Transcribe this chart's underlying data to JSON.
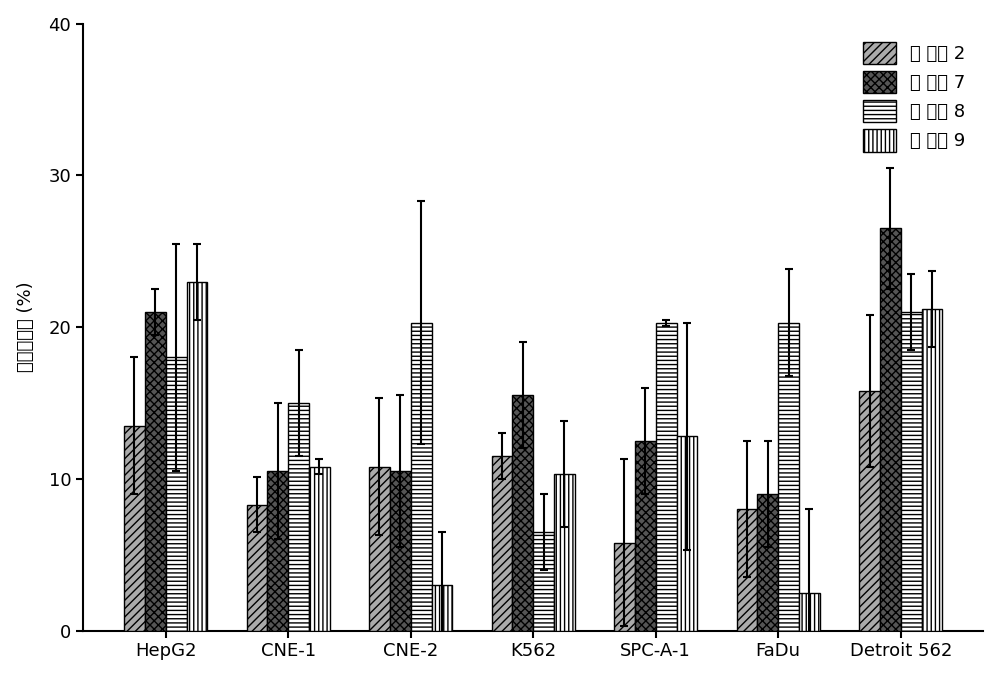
{
  "categories": [
    "HepG2",
    "CNE-1",
    "CNE-2",
    "K562",
    "SPC-A-1",
    "FaDu",
    "Detroit 562"
  ],
  "series": [
    {
      "label_prefix": "化 合物 ",
      "label_num": "2",
      "values": [
        13.5,
        8.3,
        10.8,
        11.5,
        5.8,
        8.0,
        15.8
      ],
      "errors": [
        4.5,
        1.8,
        4.5,
        1.5,
        5.5,
        4.5,
        5.0
      ],
      "hatch": "////",
      "facecolor": "#aaaaaa",
      "edgecolor": "#000000"
    },
    {
      "label_prefix": "化 合物 ",
      "label_num": "7",
      "values": [
        21.0,
        10.5,
        10.5,
        15.5,
        12.5,
        9.0,
        26.5
      ],
      "errors": [
        1.5,
        4.5,
        5.0,
        3.5,
        3.5,
        3.5,
        4.0
      ],
      "hatch": "xxxx",
      "facecolor": "#555555",
      "edgecolor": "#000000"
    },
    {
      "label_prefix": "化 合物 ",
      "label_num": "8",
      "values": [
        18.0,
        15.0,
        20.3,
        6.5,
        20.3,
        20.3,
        21.0
      ],
      "errors": [
        7.5,
        3.5,
        8.0,
        2.5,
        0.2,
        3.5,
        2.5
      ],
      "hatch": "----",
      "facecolor": "#ffffff",
      "edgecolor": "#000000"
    },
    {
      "label_prefix": "化 合物 ",
      "label_num": "9",
      "values": [
        23.0,
        10.8,
        3.0,
        10.3,
        12.8,
        2.5,
        21.2
      ],
      "errors": [
        2.5,
        0.5,
        3.5,
        3.5,
        7.5,
        5.5,
        2.5
      ],
      "hatch": "||||",
      "facecolor": "#ffffff",
      "edgecolor": "#000000"
    }
  ],
  "ylabel_cn": "生长抑制率",
  "ylabel_unit": " (%)",
  "ylim": [
    0,
    40
  ],
  "yticks": [
    0,
    10,
    20,
    30,
    40
  ],
  "bar_width": 0.17,
  "legend_loc": "upper right",
  "background_color": "#ffffff",
  "font_size": 13,
  "axis_font_size": 13,
  "legend_font_size": 13
}
